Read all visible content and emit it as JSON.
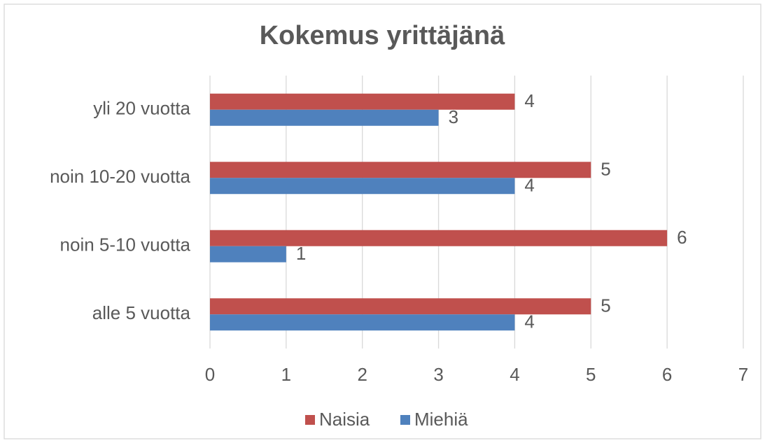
{
  "chart_data": {
    "type": "bar",
    "orientation": "horizontal",
    "title": "Kokemus yrittäjänä",
    "categories": [
      "alle 5 vuotta",
      "noin 5-10 vuotta",
      "noin 10-20 vuotta",
      "yli 20 vuotta"
    ],
    "series": [
      {
        "name": "Naisia",
        "color": "#c0504d",
        "values": [
          5,
          6,
          5,
          4
        ]
      },
      {
        "name": "Miehiä",
        "color": "#4f81bd",
        "values": [
          4,
          1,
          4,
          3
        ]
      }
    ],
    "xlim": [
      0,
      7
    ],
    "xticks": [
      0,
      1,
      2,
      3,
      4,
      5,
      6,
      7
    ],
    "grid": true,
    "legend": "bottom"
  }
}
